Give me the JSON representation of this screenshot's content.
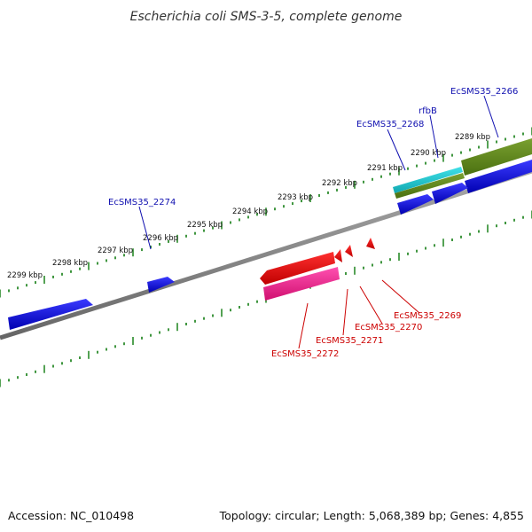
{
  "title": "Escherichia coli SMS-3-5, complete genome",
  "footer": {
    "accession": "Accession: NC_010498",
    "summary": "Topology: circular; Length: 5,068,389 bp; Genes: 4,855"
  },
  "colors": {
    "forward_gene": "#1010e0",
    "reverse_gene": "#ee1111",
    "reverse_gene_alt": "#ee2090",
    "rrna_feature": "#20c8cc",
    "region_feature": "#608a20",
    "backbone": "#888888",
    "ticks": "#2a8a2a",
    "forward_label": "#1010b0",
    "reverse_label": "#cc0000"
  },
  "ticks": [
    "2289 kbp",
    "2290 kbp",
    "2291 kbp",
    "2292 kbp",
    "2293 kbp",
    "2294 kbp",
    "2295 kbp",
    "2296 kbp",
    "2297 kbp",
    "2298 kbp",
    "2299 kbp"
  ],
  "forward_genes": [
    "EcSMS35_2266",
    "rfbB",
    "EcSMS35_2268",
    "EcSMS35_2274"
  ],
  "reverse_genes": [
    "EcSMS35_2269",
    "EcSMS35_2270",
    "EcSMS35_2271",
    "EcSMS35_2272"
  ]
}
